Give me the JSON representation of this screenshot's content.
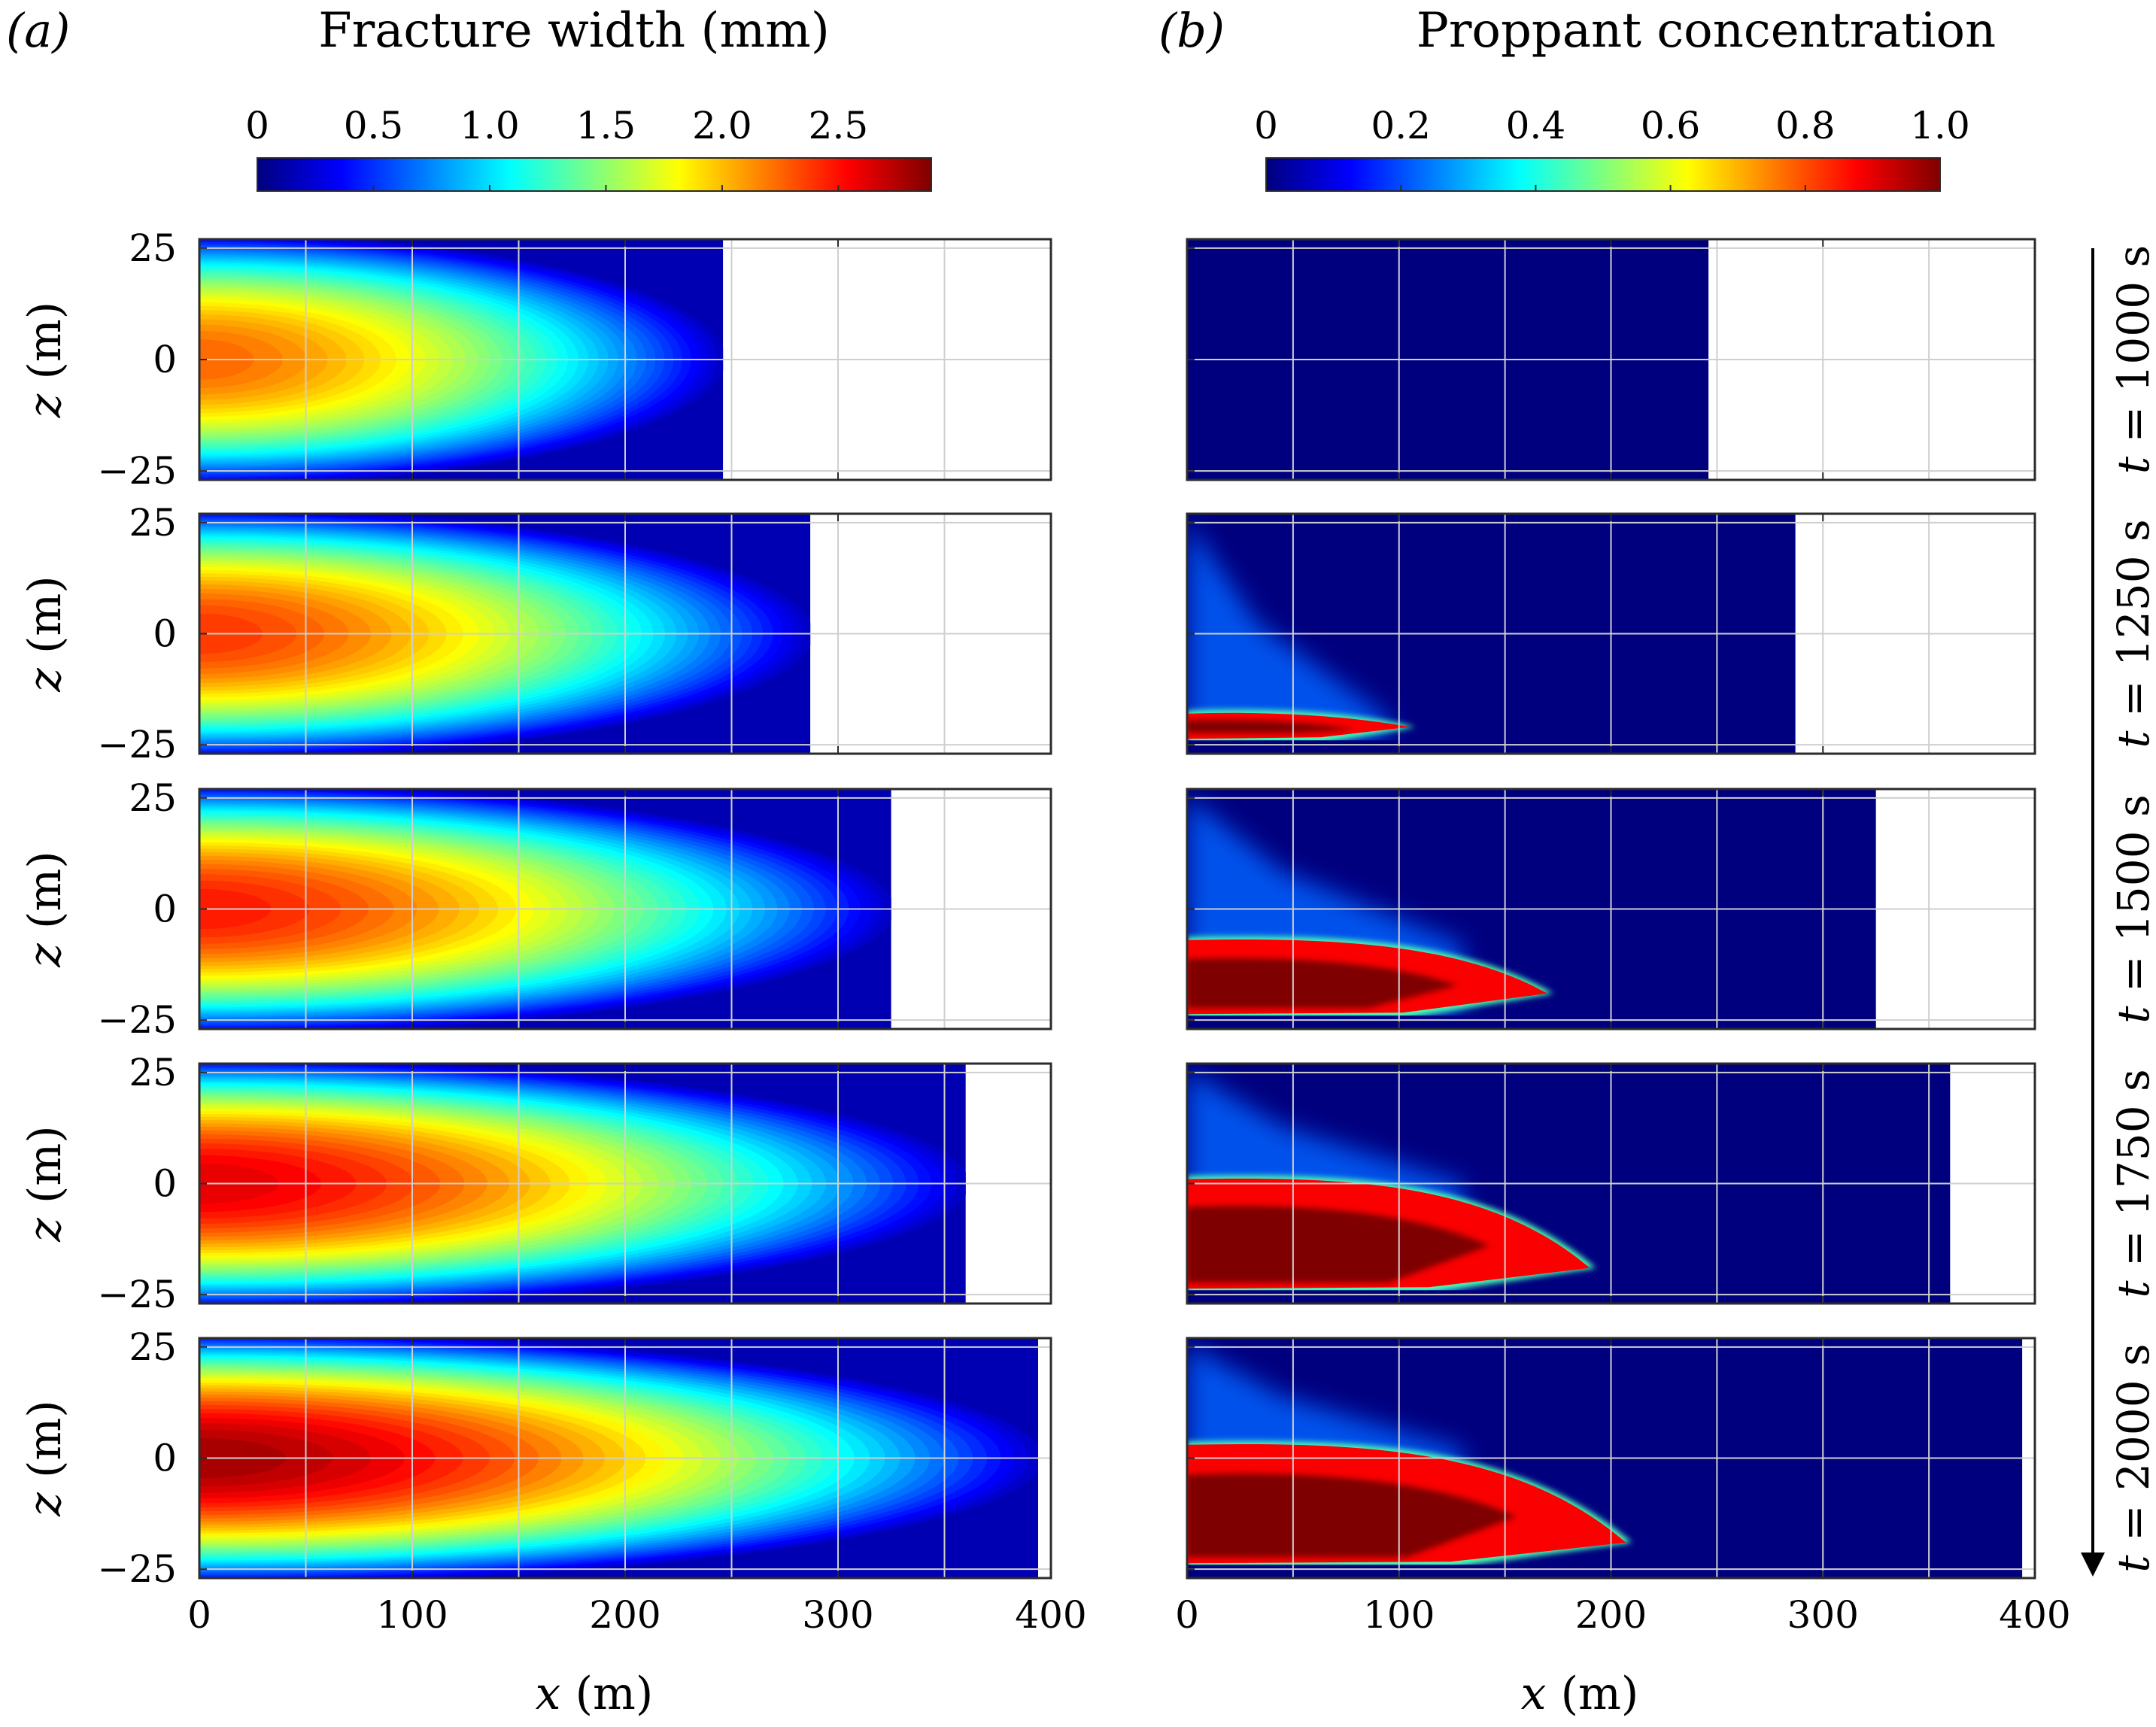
{
  "figure": {
    "time_axis_label": "t",
    "colormap": [
      "#00007f",
      "#0000ff",
      "#007fff",
      "#00ffff",
      "#7fff7f",
      "#ffff00",
      "#ff7f00",
      "#ff0000",
      "#7f0000"
    ]
  },
  "chart_data": [
    {
      "type": "heatmap",
      "panel_label": "(a)",
      "title": "Fracture width (mm)",
      "xlabel": "x (m)",
      "ylabel": "z (m)",
      "xlim": [
        0,
        400
      ],
      "ylim": [
        -27,
        27
      ],
      "xticks": [
        "0",
        "100",
        "200",
        "300",
        "400"
      ],
      "yticks": [
        "25",
        "0",
        "−25"
      ],
      "colorbar": {
        "min": 0,
        "max": 2.9,
        "ticks": [
          "0",
          "0.5",
          "1.0",
          "1.5",
          "2.0",
          "2.5"
        ]
      },
      "series": [
        {
          "name": "t = 1000 s",
          "time_value": "1000",
          "time_unit": "s",
          "front_x": 246,
          "max_width_mm": 2.25
        },
        {
          "name": "t = 1250 s",
          "time_value": "1250",
          "time_unit": "s",
          "front_x": 287,
          "max_width_mm": 2.4
        },
        {
          "name": "t = 1500 s",
          "time_value": "1500",
          "time_unit": "s",
          "front_x": 325,
          "max_width_mm": 2.5
        },
        {
          "name": "t = 1750 s",
          "time_value": "1750",
          "time_unit": "s",
          "front_x": 360,
          "max_width_mm": 2.65
        },
        {
          "name": "t = 2000 s",
          "time_value": "2000",
          "time_unit": "s",
          "front_x": 394,
          "max_width_mm": 2.85
        }
      ]
    },
    {
      "type": "heatmap",
      "panel_label": "(b)",
      "title": "Proppant concentration",
      "xlabel": "x (m)",
      "ylabel": "z (m)",
      "xlim": [
        0,
        400
      ],
      "ylim": [
        -27,
        27
      ],
      "xticks": [
        "0",
        "100",
        "200",
        "300",
        "400"
      ],
      "yticks": [],
      "colorbar": {
        "min": 0,
        "max": 1.0,
        "ticks": [
          "0",
          "0.2",
          "0.4",
          "0.6",
          "0.8",
          "1.0"
        ]
      },
      "series": [
        {
          "name": "t = 1000 s",
          "time_value": "1000",
          "time_unit": "s",
          "front_x": 246,
          "bed_length_x": 0,
          "bed_top_z": -27,
          "bed_tip_z": -27,
          "halo_length_x": 0
        },
        {
          "name": "t = 1250 s",
          "time_value": "1250",
          "time_unit": "s",
          "front_x": 287,
          "bed_length_x": 105,
          "bed_top_z": -18,
          "bed_tip_z": -21,
          "halo_length_x": 95
        },
        {
          "name": "t = 1500 s",
          "time_value": "1500",
          "time_unit": "s",
          "front_x": 325,
          "bed_length_x": 170,
          "bed_top_z": -7,
          "bed_tip_z": -19,
          "halo_length_x": 130
        },
        {
          "name": "t = 1750 s",
          "time_value": "1750",
          "time_unit": "s",
          "front_x": 360,
          "bed_length_x": 190,
          "bed_top_z": 1,
          "bed_tip_z": -19,
          "halo_length_x": 130
        },
        {
          "name": "t = 2000 s",
          "time_value": "2000",
          "time_unit": "s",
          "front_x": 394,
          "bed_length_x": 207,
          "bed_top_z": 3,
          "bed_tip_z": -19,
          "halo_length_x": 130
        }
      ]
    }
  ]
}
